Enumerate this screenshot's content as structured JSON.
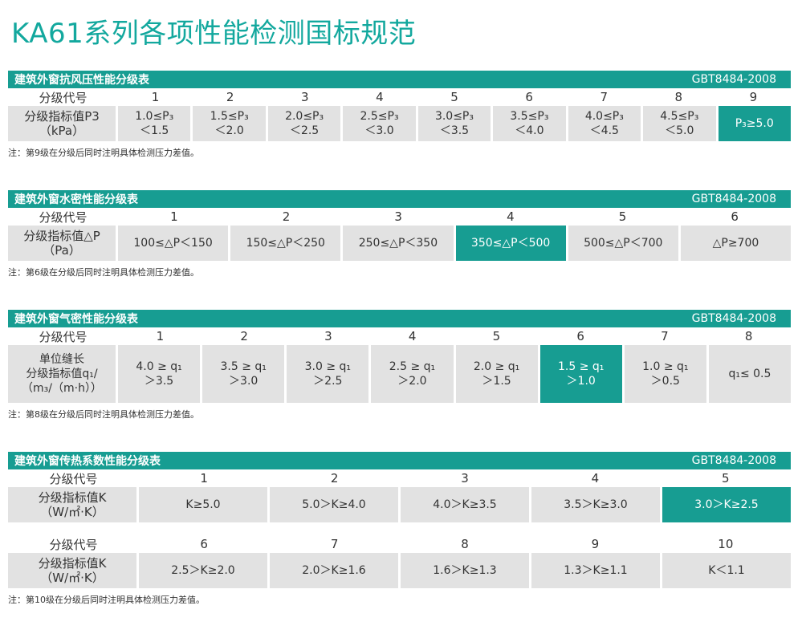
{
  "page_title": "KA61系列各项性能检测国标规范",
  "wind": {
    "title": "建筑外窗抗风压性能分级表",
    "standard": "GBT8484-2008",
    "code_label": "分级代号",
    "codes": [
      "1",
      "2",
      "3",
      "4",
      "5",
      "6",
      "7",
      "8",
      "9"
    ],
    "index_label_1": "分级指标值P3",
    "index_label_2": "（kPa）",
    "cells": [
      [
        "1.0≤P₃",
        "＜1.5"
      ],
      [
        "1.5≤P₃",
        "＜2.0"
      ],
      [
        "2.0≤P₃",
        "＜2.5"
      ],
      [
        "2.5≤P₃",
        "＜3.0"
      ],
      [
        "3.0≤P₃",
        "＜3.5"
      ],
      [
        "3.5≤P₃",
        "＜4.0"
      ],
      [
        "4.0≤P₃",
        "＜4.5"
      ],
      [
        "4.5≤P₃",
        "＜5.0"
      ],
      [
        "P₃≥5.0",
        ""
      ]
    ],
    "highlight": 8,
    "note": "注：第9级在分级后同时注明具体检测压力差值。"
  },
  "water": {
    "title": "建筑外窗水密性能分级表",
    "standard": "GBT8484-2008",
    "code_label": "分级代号",
    "codes": [
      "1",
      "2",
      "3",
      "4",
      "5",
      "6"
    ],
    "index_label_1": "分级指标值△P",
    "index_label_2": "（Pa）",
    "cells": [
      "100≤△P＜150",
      "150≤△P＜250",
      "250≤△P＜350",
      "350≤△P＜500",
      "500≤△P＜700",
      "△P≥700"
    ],
    "highlight": 3,
    "note": "注：第6级在分级后同时注明具体检测压力差值。"
  },
  "air": {
    "title": "建筑外窗气密性能分级表",
    "standard": "GBT8484-2008",
    "code_label": "分级代号",
    "codes": [
      "1",
      "2",
      "3",
      "4",
      "5",
      "6",
      "7",
      "8"
    ],
    "index_label_1": "单位缝长",
    "index_label_2": "分级指标值q₁/",
    "index_label_3": "（m₃/（m·h））",
    "cells": [
      [
        "4.0 ≥ q₁",
        "＞3.5"
      ],
      [
        "3.5 ≥ q₁",
        "＞3.0"
      ],
      [
        "3.0 ≥ q₁",
        "＞2.5"
      ],
      [
        "2.5 ≥ q₁",
        "＞2.0"
      ],
      [
        "2.0 ≥ q₁",
        "＞1.5"
      ],
      [
        "1.5 ≥ q₁",
        "＞1.0"
      ],
      [
        "1.0 ≥ q₁",
        "＞0.5"
      ],
      [
        "q₁≤ 0.5",
        ""
      ]
    ],
    "highlight": 5,
    "note": "注：第8级在分级后同时注明具体检测压力差值。"
  },
  "heat": {
    "title": "建筑外窗传热系数性能分级表",
    "standard": "GBT8484-2008",
    "code_label": "分级代号",
    "index_label_1": "分级指标值K",
    "index_label_2": "（W/㎡·K）",
    "codes_a": [
      "1",
      "2",
      "3",
      "4",
      "5"
    ],
    "cells_a": [
      "K≥5.0",
      "5.0＞K≥4.0",
      "4.0＞K≥3.5",
      "3.5＞K≥3.0",
      "3.0＞K≥2.5"
    ],
    "highlight_a": 4,
    "codes_b": [
      "6",
      "7",
      "8",
      "9",
      "10"
    ],
    "cells_b": [
      "2.5＞K≥2.0",
      "2.0＞K≥1.6",
      "1.6＞K≥1.3",
      "1.3＞K≥1.1",
      "K＜1.1"
    ],
    "highlight_b": -1,
    "note": "注：第10级在分级后同时注明具体检测压力差值。"
  }
}
